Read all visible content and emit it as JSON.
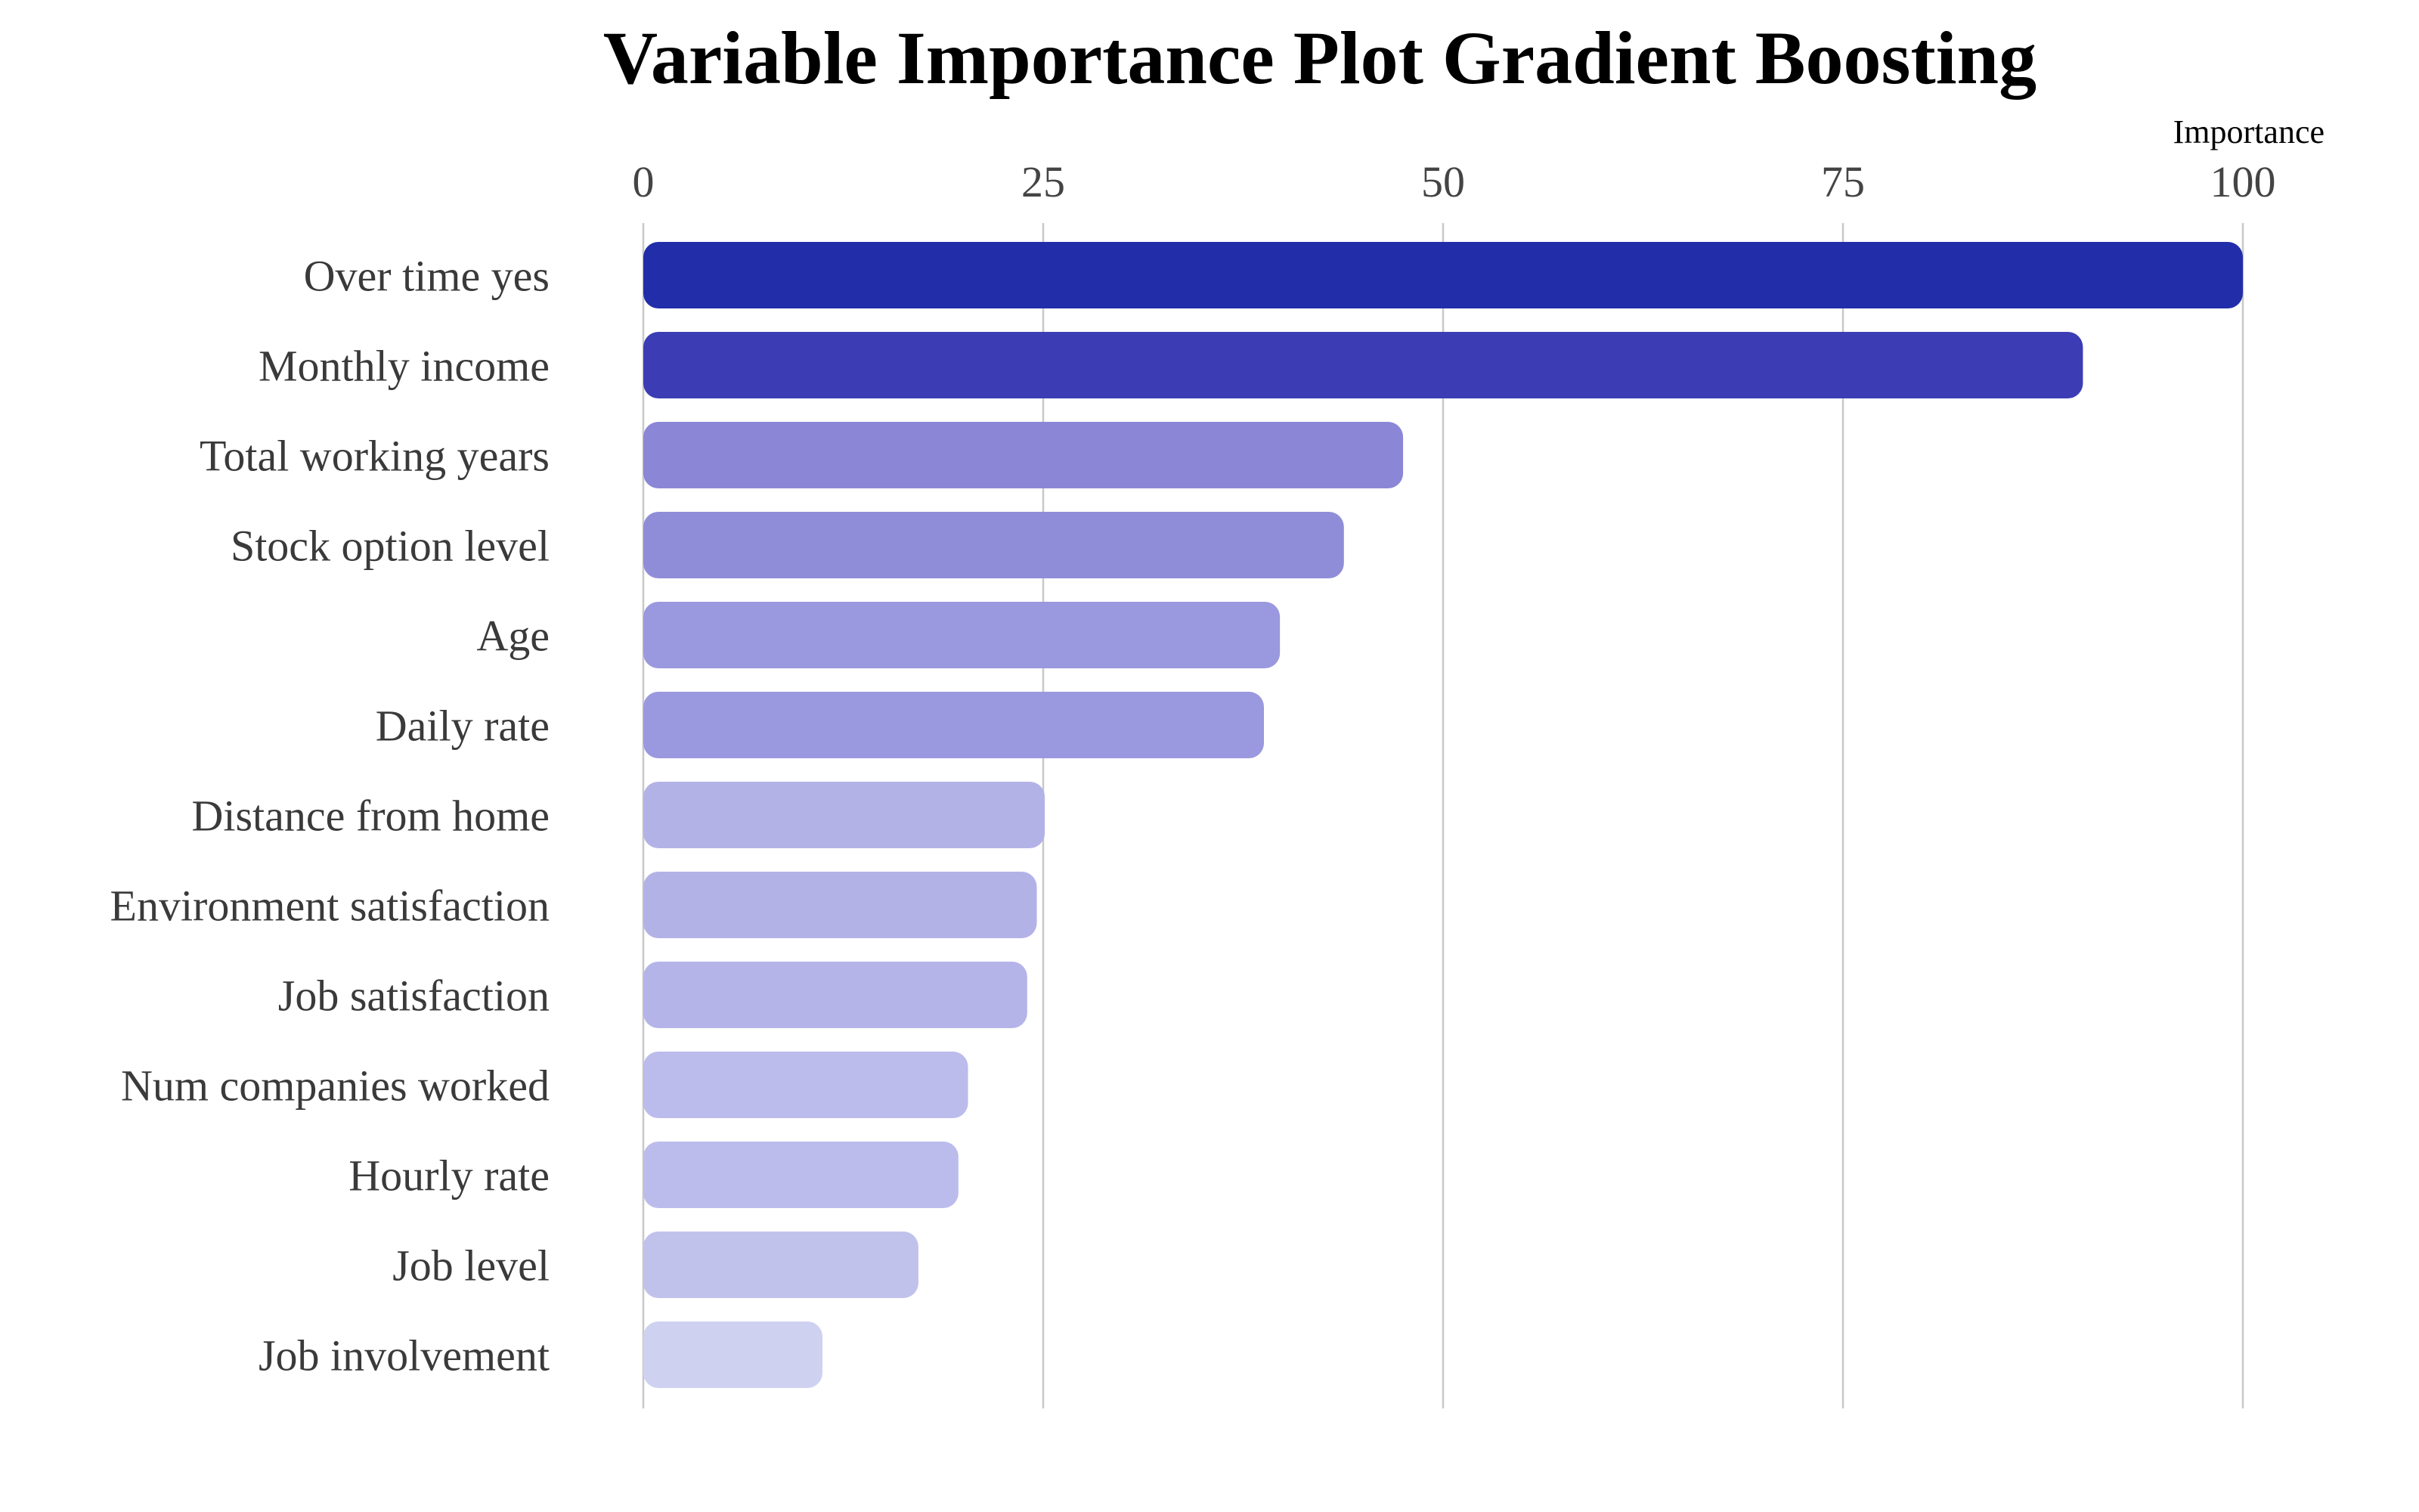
{
  "chart_data": {
    "type": "bar",
    "orientation": "horizontal",
    "title": "Variable Importance Plot Gradient Boosting",
    "xlabel": "Importance",
    "ylabel": "",
    "xlim": [
      0,
      100
    ],
    "x_ticks": [
      0,
      25,
      50,
      75,
      100
    ],
    "x_axis_position": "top",
    "grid": "vertical major gridlines",
    "legend": "none",
    "categories": [
      "Over time yes",
      "Monthly income",
      "Total working years",
      "Stock option level",
      "Age",
      "Daily rate",
      "Distance from home",
      "Environment satisfaction",
      "Job satisfaction",
      "Num companies worked",
      "Hourly rate",
      "Job level",
      "Job involvement"
    ],
    "values": [
      100,
      90,
      47.5,
      43.8,
      39.8,
      38.8,
      25.1,
      24.6,
      24.0,
      20.3,
      19.7,
      17.2,
      11.2
    ],
    "colors": [
      "#222daa",
      "#3c3db4",
      "#8b87d6",
      "#908dd8",
      "#9a98de",
      "#9a98de",
      "#b3b2e7",
      "#b3b2e7",
      "#b5b4e8",
      "#bbbbec",
      "#bcbcec",
      "#c1c2ec",
      "#cfd1f1"
    ]
  }
}
